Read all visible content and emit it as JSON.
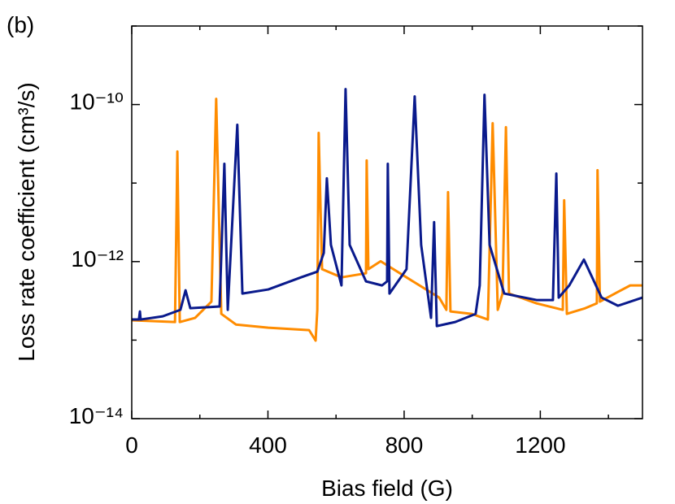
{
  "chart_data": {
    "type": "line",
    "panel_label": "(b)",
    "xlabel": "Bias field (G)",
    "ylabel": "Loss rate coefficient (cm³/s)",
    "xlim": [
      0,
      1500
    ],
    "xticks": [
      0,
      400,
      800,
      1200
    ],
    "xminor": [
      200,
      600,
      1000,
      1400
    ],
    "ylim": [
      1e-14,
      1e-09
    ],
    "yscale": "log",
    "yticks": [
      {
        "value": 1e-14,
        "label": "10⁻¹⁴"
      },
      {
        "value": 1e-12,
        "label": "10⁻¹²"
      },
      {
        "value": 1e-10,
        "label": "10⁻¹⁰"
      }
    ],
    "yminor": [
      1e-13,
      1e-11,
      1e-09
    ],
    "series": [
      {
        "color": "#ff8c00",
        "x": [
          0,
          127,
          134,
          141,
          186,
          234,
          248,
          263,
          306,
          401,
          521,
          540,
          545,
          549,
          559,
          616,
          688,
          690,
          695,
          731,
          807,
          903,
          924,
          929,
          936,
          998,
          1046,
          1060,
          1075,
          1089,
          1099,
          1108,
          1189,
          1266,
          1270,
          1278,
          1332,
          1366,
          1368,
          1375,
          1428,
          1464,
          1500
        ],
        "values": [
          1.79e-13,
          1.7e-13,
          2.52e-11,
          1.7e-13,
          1.92e-13,
          3.09e-13,
          1.18e-10,
          2.16e-13,
          1.58e-13,
          1.44e-13,
          1.34e-13,
          9.86e-14,
          2.43e-13,
          4.35e-11,
          8e-13,
          6.3e-13,
          7.1e-13,
          1.94e-11,
          8e-13,
          1.01e-12,
          6.3e-13,
          3.48e-13,
          2.43e-13,
          7.66e-12,
          2.32e-13,
          2.16e-13,
          1.83e-13,
          5.78e-11,
          2.43e-13,
          3.92e-13,
          5.14e-11,
          3.92e-13,
          2.94e-13,
          2.43e-13,
          6.04e-12,
          2.16e-13,
          2.55e-13,
          2.94e-13,
          1.46e-11,
          3.09e-13,
          4.11e-13,
          4.97e-13,
          4.97e-13
        ]
      },
      {
        "color": "#0a1a8c",
        "x": [
          0,
          21,
          24,
          26,
          91,
          143,
          158,
          172,
          258,
          272,
          282,
          310,
          325,
          401,
          497,
          545,
          564,
          573,
          585,
          616,
          628,
          640,
          688,
          735,
          750,
          752,
          757,
          807,
          831,
          850,
          879,
          888,
          896,
          950,
          1010,
          1022,
          1036,
          1051,
          1094,
          1189,
          1237,
          1247,
          1254,
          1285,
          1328,
          1380,
          1428,
          1500
        ],
        "values": [
          1.83e-13,
          1.83e-13,
          2.32e-13,
          1.83e-13,
          2.01e-13,
          2.43e-13,
          4.31e-13,
          2.55e-13,
          2.68e-13,
          1.76e-11,
          2.43e-13,
          5.52e-11,
          3.92e-13,
          4.42e-13,
          6.3e-13,
          7.45e-13,
          1.29e-12,
          1.15e-11,
          1.63e-12,
          4.97e-13,
          1.57e-10,
          1.63e-12,
          5.6e-13,
          4.97e-13,
          5.6e-13,
          1.76e-11,
          3.92e-13,
          8e-13,
          1.27e-10,
          1.63e-12,
          1.92e-13,
          3.18e-12,
          1.51e-13,
          1.7e-13,
          2.16e-13,
          4.97e-13,
          1.33e-10,
          1.63e-12,
          3.92e-13,
          3.24e-13,
          3.24e-13,
          1.32e-11,
          3.48e-13,
          4.97e-13,
          1.06e-12,
          3.48e-13,
          2.74e-13,
          3.48e-13
        ]
      }
    ]
  }
}
